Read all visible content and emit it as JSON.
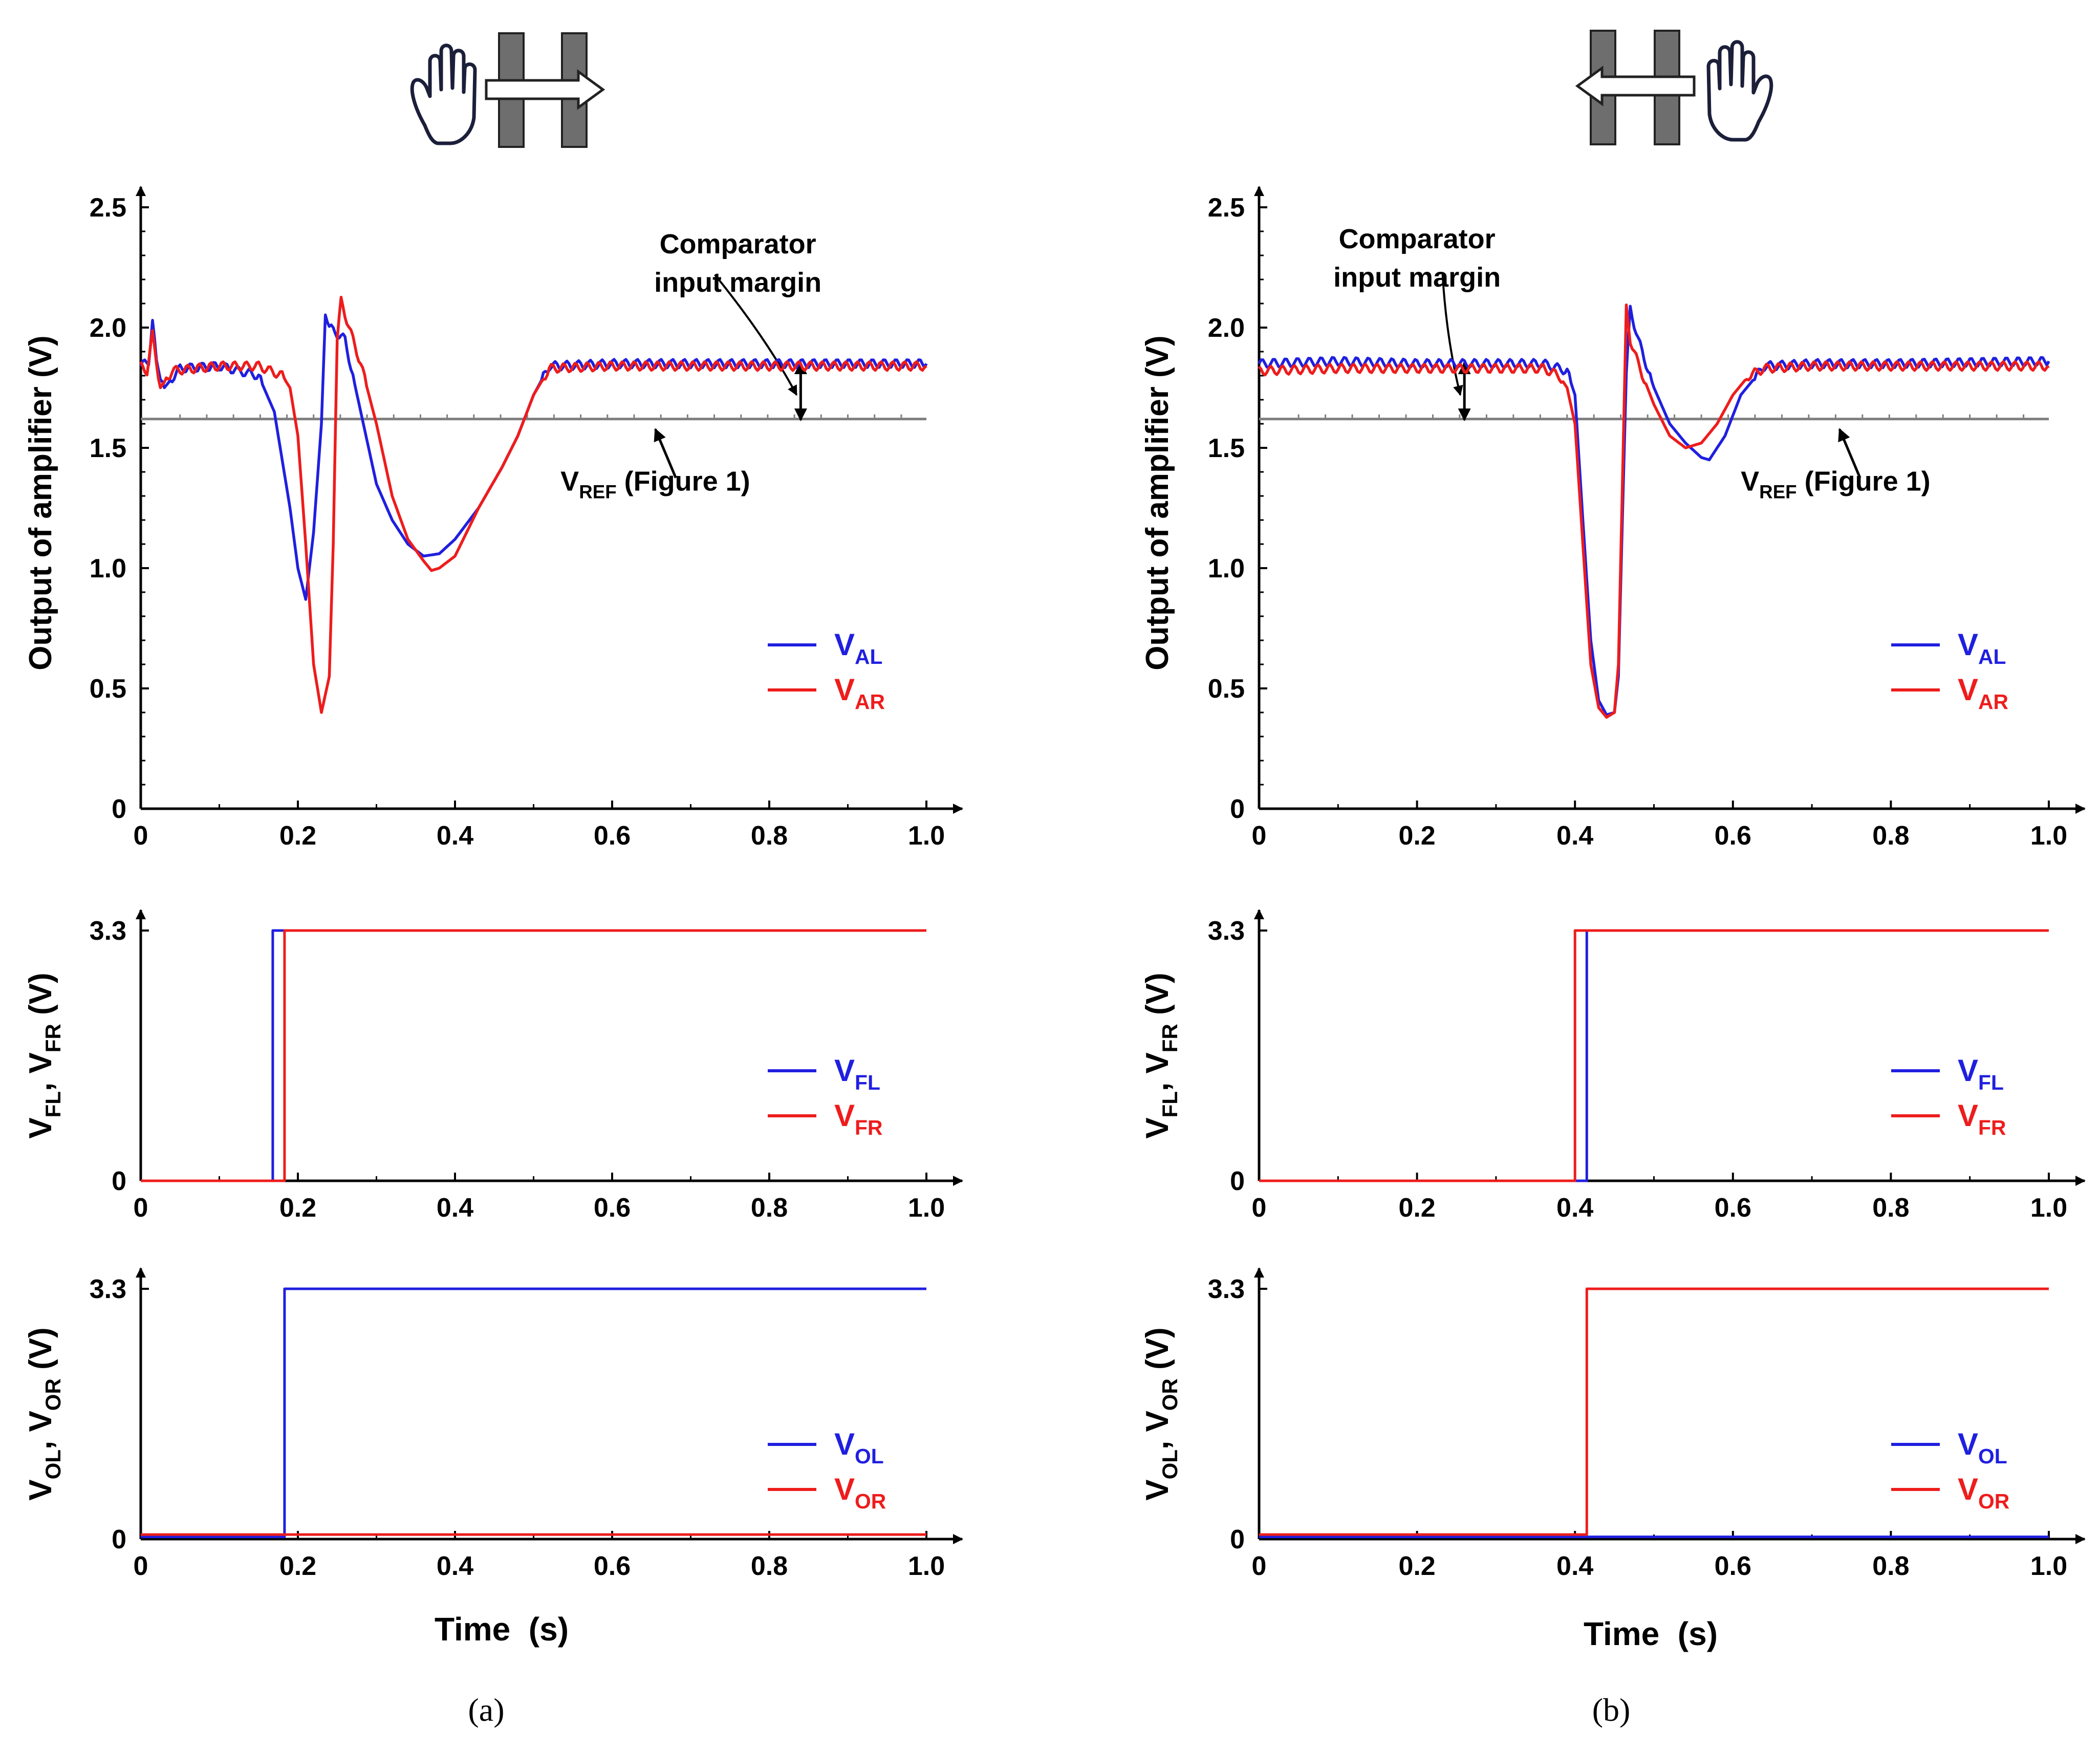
{
  "colors": {
    "blue": "#1f1fe0",
    "red": "#ee1c1c",
    "ref": "#7f7f7f",
    "axis": "#000000",
    "block": "#6e6e6e"
  },
  "icons": {
    "left_panel": [
      "hand-icon",
      "barrier-block-icon",
      "arrow-right-icon"
    ],
    "right_panel": [
      "hand-icon",
      "barrier-block-icon",
      "arrow-left-icon"
    ]
  },
  "shared_xlabel": "Time  (s)",
  "panels": [
    {
      "id": "a",
      "label": "(a)",
      "xlabel": "Time  (s)"
    },
    {
      "id": "b",
      "label": "(b)",
      "xlabel": "Time  (s)"
    }
  ],
  "chart_data": [
    {
      "panel": "a",
      "row": "amplifier",
      "type": "line",
      "ylabel": "Output of amplifier (V)",
      "xlim": [
        0,
        1.0
      ],
      "ylim": [
        0,
        2.5
      ],
      "xticks": [
        "0",
        "0.2",
        "0.4",
        "0.6",
        "0.8",
        "1.0"
      ],
      "yticks": [
        "0",
        "0.5",
        "1.0",
        "1.5",
        "2.0",
        "2.5"
      ],
      "reference": {
        "name": "V_REF",
        "value": 1.62,
        "label_main": "V",
        "label_sub": "REF",
        "label_rest": " (Figure 1)"
      },
      "annotation": {
        "line1": "Comparator",
        "line2": "input margin",
        "x": 0.84
      },
      "series": [
        {
          "name": "V_AL",
          "label_main": "V",
          "label_sub": "AL",
          "color": "blue",
          "x": [
            0,
            0.01,
            0.015,
            0.02,
            0.03,
            0.05,
            0.1,
            0.15,
            0.17,
            0.19,
            0.2,
            0.21,
            0.22,
            0.23,
            0.235,
            0.24,
            0.26,
            0.28,
            0.3,
            0.32,
            0.34,
            0.36,
            0.38,
            0.4,
            0.43,
            0.46,
            0.48,
            0.5,
            0.52,
            0.6,
            0.8,
            1.0
          ],
          "y": [
            1.84,
            1.86,
            2.03,
            1.85,
            1.75,
            1.83,
            1.84,
            1.8,
            1.65,
            1.25,
            1.0,
            0.87,
            1.15,
            1.6,
            2.07,
            2.0,
            1.95,
            1.65,
            1.35,
            1.2,
            1.1,
            1.05,
            1.06,
            1.12,
            1.25,
            1.42,
            1.55,
            1.72,
            1.84,
            1.85,
            1.85,
            1.85
          ]
        },
        {
          "name": "V_AR",
          "label_main": "V",
          "label_sub": "AR",
          "color": "red",
          "x": [
            0,
            0.008,
            0.015,
            0.025,
            0.04,
            0.1,
            0.15,
            0.18,
            0.19,
            0.2,
            0.21,
            0.22,
            0.23,
            0.24,
            0.245,
            0.25,
            0.255,
            0.27,
            0.28,
            0.3,
            0.32,
            0.34,
            0.36,
            0.37,
            0.38,
            0.4,
            0.43,
            0.46,
            0.48,
            0.5,
            0.52,
            0.6,
            0.8,
            1.0
          ],
          "y": [
            1.84,
            1.82,
            1.97,
            1.75,
            1.82,
            1.84,
            1.84,
            1.8,
            1.75,
            1.55,
            1.1,
            0.6,
            0.4,
            0.55,
            1.1,
            1.95,
            2.11,
            1.95,
            1.85,
            1.6,
            1.3,
            1.12,
            1.03,
            0.99,
            1.0,
            1.05,
            1.25,
            1.42,
            1.55,
            1.72,
            1.83,
            1.84,
            1.84,
            1.84
          ]
        }
      ]
    },
    {
      "panel": "a",
      "row": "flag",
      "type": "line",
      "ylabel": "V_FL, V_FR (V)",
      "ylabel_parts": [
        "V",
        "FL",
        ", V",
        "FR",
        " (V)"
      ],
      "xlim": [
        0,
        1.0
      ],
      "ylim": [
        0,
        3.3
      ],
      "xticks": [
        "0",
        "0.2",
        "0.4",
        "0.6",
        "0.8",
        "1.0"
      ],
      "yticks": [
        "0",
        "3.3"
      ],
      "series": [
        {
          "name": "V_FL",
          "label_main": "V",
          "label_sub": "FL",
          "color": "blue",
          "x": [
            0,
            0.168,
            0.168,
            1.0
          ],
          "y": [
            0,
            0,
            3.3,
            3.3
          ]
        },
        {
          "name": "V_FR",
          "label_main": "V",
          "label_sub": "FR",
          "color": "red",
          "x": [
            0,
            0.183,
            0.183,
            1.0
          ],
          "y": [
            0,
            0,
            3.3,
            3.3
          ]
        }
      ]
    },
    {
      "panel": "a",
      "row": "output",
      "type": "line",
      "ylabel": "V_OL, V_OR (V)",
      "ylabel_parts": [
        "V",
        "OL",
        ", V",
        "OR",
        " (V)"
      ],
      "xlim": [
        0,
        1.0
      ],
      "ylim": [
        0,
        3.3
      ],
      "xticks": [
        "0",
        "0.2",
        "0.4",
        "0.6",
        "0.8",
        "1.0"
      ],
      "yticks": [
        "0",
        "3.3"
      ],
      "series": [
        {
          "name": "V_OL",
          "label_main": "V",
          "label_sub": "OL",
          "color": "blue",
          "x": [
            0,
            0.183,
            0.183,
            1.0
          ],
          "y": [
            0.03,
            0.03,
            3.3,
            3.3
          ]
        },
        {
          "name": "V_OR",
          "label_main": "V",
          "label_sub": "OR",
          "color": "red",
          "x": [
            0,
            1.0
          ],
          "y": [
            0.06,
            0.06
          ]
        }
      ]
    },
    {
      "panel": "b",
      "row": "amplifier",
      "type": "line",
      "ylabel": "Output of amplifier (V)",
      "xlim": [
        0,
        1.0
      ],
      "ylim": [
        0,
        2.5
      ],
      "xticks": [
        "0",
        "0.2",
        "0.4",
        "0.6",
        "0.8",
        "1.0"
      ],
      "yticks": [
        "0",
        "0.5",
        "1.0",
        "1.5",
        "2.0",
        "2.5"
      ],
      "reference": {
        "name": "V_REF",
        "value": 1.62,
        "label_main": "V",
        "label_sub": "REF",
        "label_rest": " (Figure 1)"
      },
      "annotation": {
        "line1": "Comparator",
        "line2": "input margin",
        "x": 0.26
      },
      "series": [
        {
          "name": "V_AL",
          "label_main": "V",
          "label_sub": "AL",
          "color": "blue",
          "x": [
            0,
            0.1,
            0.2,
            0.3,
            0.36,
            0.39,
            0.4,
            0.41,
            0.42,
            0.43,
            0.44,
            0.45,
            0.455,
            0.46,
            0.465,
            0.47,
            0.48,
            0.5,
            0.52,
            0.54,
            0.56,
            0.57,
            0.59,
            0.61,
            0.64,
            0.7,
            0.8,
            1.0
          ],
          "y": [
            1.85,
            1.86,
            1.85,
            1.85,
            1.85,
            1.82,
            1.72,
            1.2,
            0.7,
            0.45,
            0.39,
            0.4,
            0.55,
            1.2,
            1.8,
            2.08,
            1.95,
            1.75,
            1.6,
            1.52,
            1.46,
            1.45,
            1.55,
            1.72,
            1.84,
            1.85,
            1.85,
            1.86
          ]
        },
        {
          "name": "V_AR",
          "label_main": "V",
          "label_sub": "AR",
          "color": "red",
          "x": [
            0,
            0.1,
            0.2,
            0.3,
            0.36,
            0.38,
            0.39,
            0.4,
            0.41,
            0.42,
            0.43,
            0.44,
            0.45,
            0.455,
            0.465,
            0.47,
            0.48,
            0.5,
            0.52,
            0.54,
            0.56,
            0.58,
            0.6,
            0.62,
            0.64,
            0.7,
            0.8,
            1.0
          ],
          "y": [
            1.82,
            1.83,
            1.83,
            1.83,
            1.83,
            1.8,
            1.75,
            1.6,
            1.1,
            0.6,
            0.42,
            0.38,
            0.4,
            0.6,
            2.08,
            1.95,
            1.85,
            1.68,
            1.55,
            1.5,
            1.52,
            1.6,
            1.72,
            1.8,
            1.83,
            1.84,
            1.84,
            1.84
          ]
        }
      ]
    },
    {
      "panel": "b",
      "row": "flag",
      "type": "line",
      "ylabel": "V_FL, V_FR (V)",
      "ylabel_parts": [
        "V",
        "FL",
        ", V",
        "FR",
        " (V)"
      ],
      "xlim": [
        0,
        1.0
      ],
      "ylim": [
        0,
        3.3
      ],
      "xticks": [
        "0",
        "0.2",
        "0.4",
        "0.6",
        "0.8",
        "1.0"
      ],
      "yticks": [
        "0",
        "3.3"
      ],
      "series": [
        {
          "name": "V_FL",
          "label_main": "V",
          "label_sub": "FL",
          "color": "blue",
          "x": [
            0,
            0.415,
            0.415,
            1.0
          ],
          "y": [
            0,
            0,
            3.3,
            3.3
          ]
        },
        {
          "name": "V_FR",
          "label_main": "V",
          "label_sub": "FR",
          "color": "red",
          "x": [
            0,
            0.4,
            0.4,
            1.0
          ],
          "y": [
            0,
            0,
            3.3,
            3.3
          ]
        }
      ]
    },
    {
      "panel": "b",
      "row": "output",
      "type": "line",
      "ylabel": "V_OL, V_OR (V)",
      "ylabel_parts": [
        "V",
        "OL",
        ", V",
        "OR",
        " (V)"
      ],
      "xlim": [
        0,
        1.0
      ],
      "ylim": [
        0,
        3.3
      ],
      "xticks": [
        "0",
        "0.2",
        "0.4",
        "0.6",
        "0.8",
        "1.0"
      ],
      "yticks": [
        "0",
        "3.3"
      ],
      "series": [
        {
          "name": "V_OL",
          "label_main": "V",
          "label_sub": "OL",
          "color": "blue",
          "x": [
            0,
            1.0
          ],
          "y": [
            0.03,
            0.03
          ]
        },
        {
          "name": "V_OR",
          "label_main": "V",
          "label_sub": "OR",
          "color": "red",
          "x": [
            0,
            0.415,
            0.415,
            1.0
          ],
          "y": [
            0.06,
            0.06,
            3.3,
            3.3
          ]
        }
      ]
    }
  ]
}
